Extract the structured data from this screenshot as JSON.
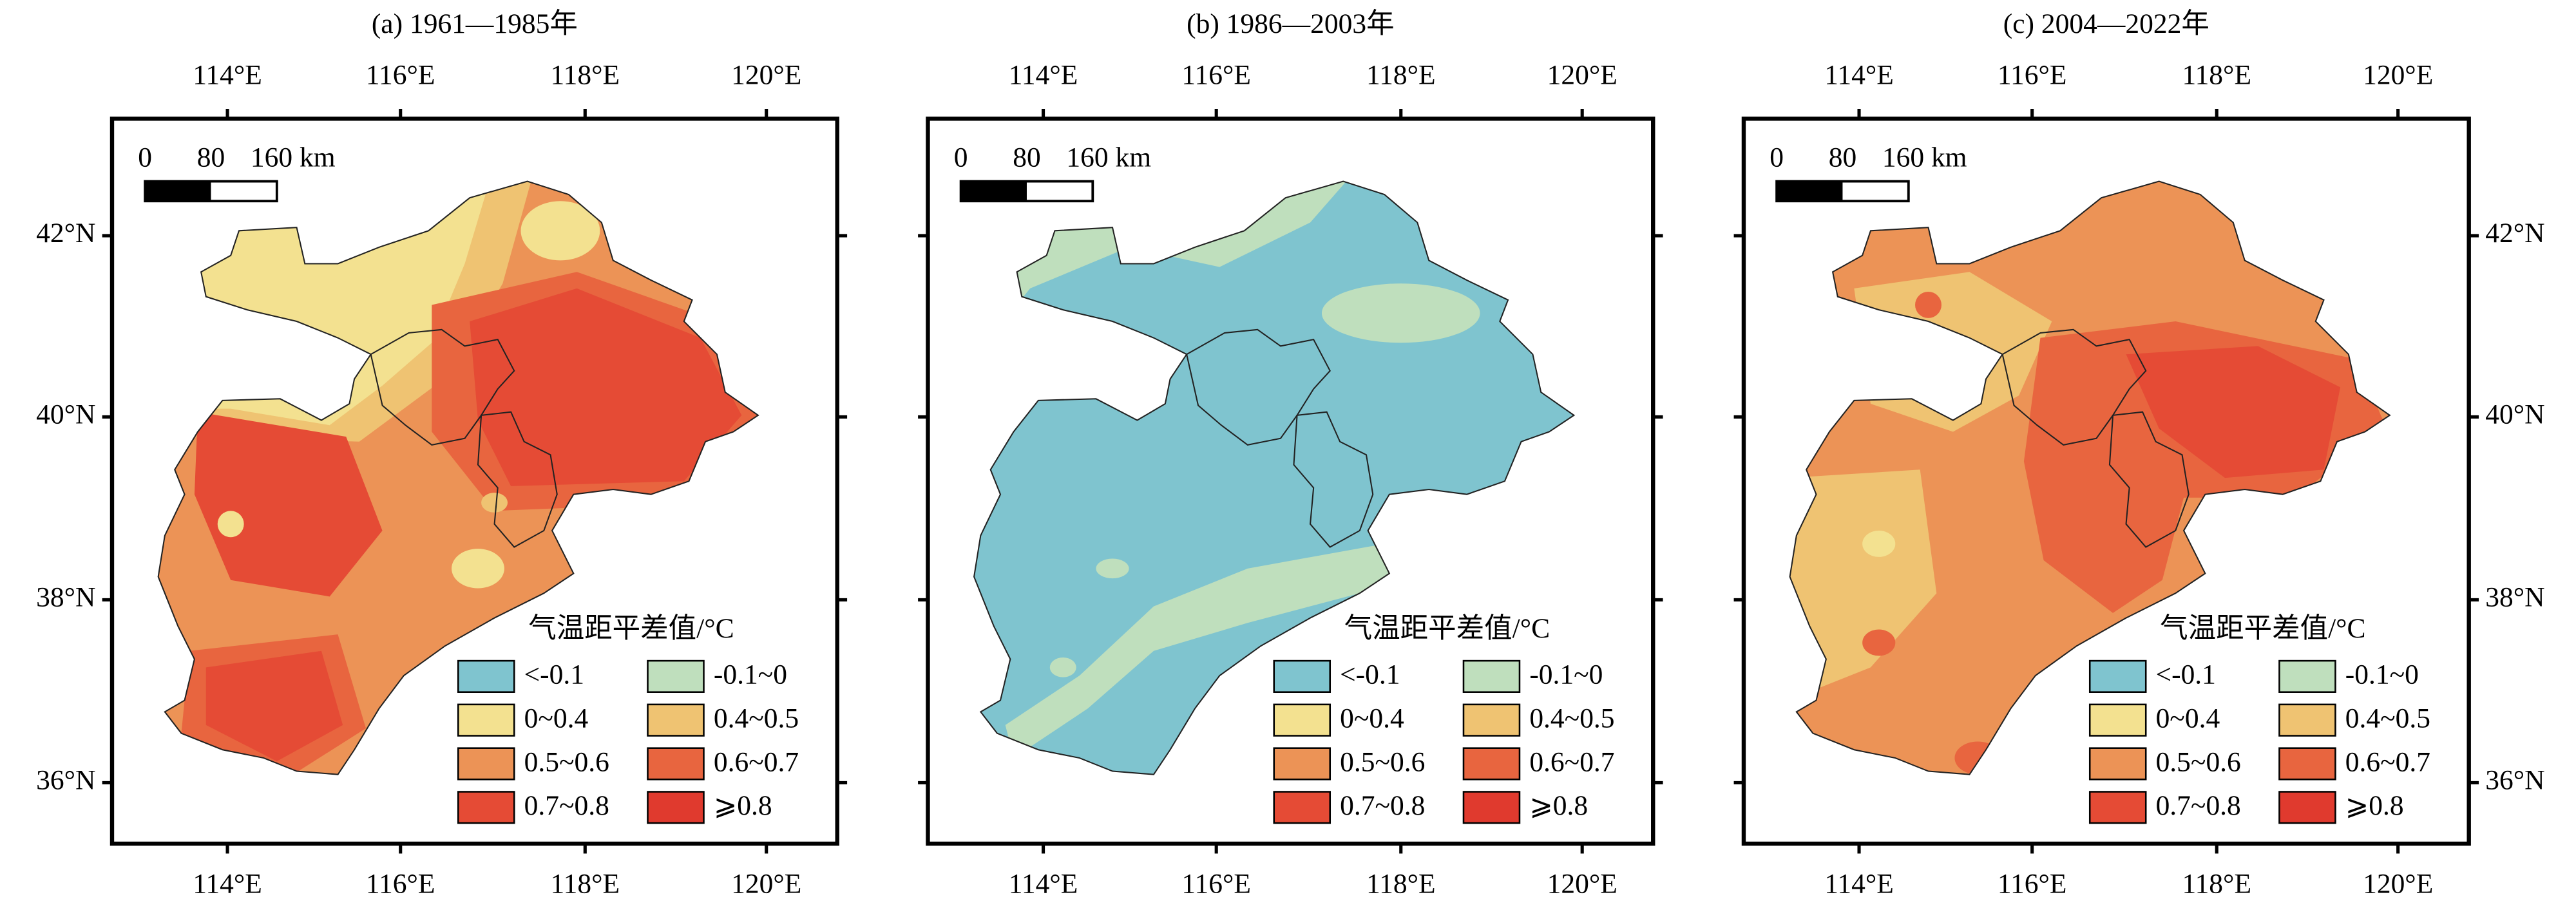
{
  "panels": [
    {
      "title": "(a) 1961—1985年"
    },
    {
      "title": "(b) 1986—2003年"
    },
    {
      "title": "(c) 2004—2022年"
    }
  ],
  "longitude_labels": [
    "114°E",
    "116°E",
    "118°E",
    "120°E"
  ],
  "latitude_labels": [
    "42°N",
    "40°N",
    "38°N",
    "36°N"
  ],
  "scale_bar": {
    "labels": [
      "0",
      "80",
      "160 km"
    ]
  },
  "legend": {
    "title": "气温距平差值/°C",
    "classes": [
      {
        "label": "<-0.1",
        "color": "#7fc4cf"
      },
      {
        "label": "-0.1~0",
        "color": "#bfdfbd"
      },
      {
        "label": "0~0.4",
        "color": "#f3e190"
      },
      {
        "label": "0.4~0.5",
        "color": "#efc372"
      },
      {
        "label": "0.5~0.6",
        "color": "#ec9356"
      },
      {
        "label": "0.6~0.7",
        "color": "#e8653f"
      },
      {
        "label": "0.7~0.8",
        "color": "#e54b35"
      },
      {
        "label": "⩾0.8",
        "color": "#e03a2e"
      }
    ]
  }
}
